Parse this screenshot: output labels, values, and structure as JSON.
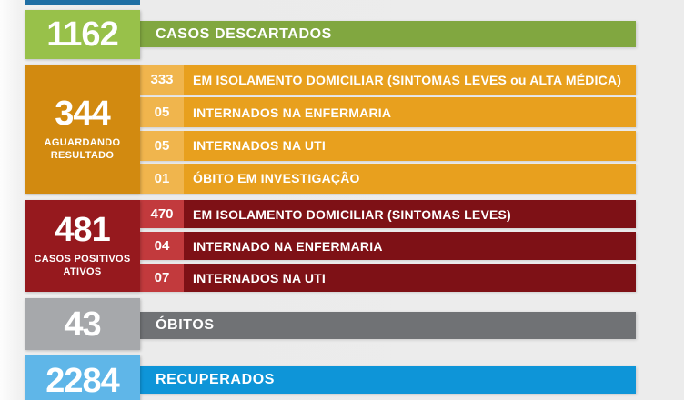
{
  "colors": {
    "top_fragment": "#1f6fa4",
    "green_block": "#98c14a",
    "green_bar": "#81a740",
    "orange_block": "#d28a10",
    "orange_value_box": "#f0b54d",
    "orange_row": "#e8a01e",
    "red_block": "#96191e",
    "red_value_box": "#c23a3d",
    "red_row": "#7e1116",
    "gray_block": "#a6a8ab",
    "gray_bar": "#707275",
    "blue_block": "#5fb6e8",
    "blue_bar": "#0e95d8",
    "text": "#ffffff"
  },
  "stats": {
    "descartados": {
      "value": "1162",
      "label": "CASOS DESCARTADOS"
    },
    "aguardando": {
      "value": "344",
      "sublabel": "AGUARDANDO RESULTADO",
      "rows": [
        {
          "value": "333",
          "label": "EM ISOLAMENTO DOMICILIAR (SINTOMAS LEVES ou ALTA MÉDICA)"
        },
        {
          "value": "05",
          "label": "INTERNADOS NA ENFERMARIA"
        },
        {
          "value": "05",
          "label": "INTERNADOS NA UTI"
        },
        {
          "value": "01",
          "label": "ÓBITO EM INVESTIGAÇÃO"
        }
      ]
    },
    "positivos": {
      "value": "481",
      "sublabel": "CASOS POSITIVOS ATIVOS",
      "rows": [
        {
          "value": "470",
          "label": "EM ISOLAMENTO DOMICILIAR (SINTOMAS LEVES)"
        },
        {
          "value": "04",
          "label": "INTERNADO NA ENFERMARIA"
        },
        {
          "value": "07",
          "label": "INTERNADOS NA UTI"
        }
      ]
    },
    "obitos": {
      "value": "43",
      "label": "ÓBITOS"
    },
    "recuperados": {
      "value": "2284",
      "label": "RECUPERADOS"
    }
  },
  "chart_data": {
    "type": "table",
    "title": "COVID case status board",
    "rows": [
      {
        "value": 1162,
        "label": "CASOS DESCARTADOS"
      },
      {
        "value": 344,
        "label": "AGUARDANDO RESULTADO",
        "breakdown": [
          {
            "value": 333,
            "label": "EM ISOLAMENTO DOMICILIAR (SINTOMAS LEVES ou ALTA MÉDICA)"
          },
          {
            "value": 5,
            "label": "INTERNADOS NA ENFERMARIA"
          },
          {
            "value": 5,
            "label": "INTERNADOS NA UTI"
          },
          {
            "value": 1,
            "label": "ÓBITO EM INVESTIGAÇÃO"
          }
        ]
      },
      {
        "value": 481,
        "label": "CASOS POSITIVOS ATIVOS",
        "breakdown": [
          {
            "value": 470,
            "label": "EM ISOLAMENTO DOMICILIAR (SINTOMAS LEVES)"
          },
          {
            "value": 4,
            "label": "INTERNADO NA ENFERMARIA"
          },
          {
            "value": 7,
            "label": "INTERNADOS NA UTI"
          }
        ]
      },
      {
        "value": 43,
        "label": "ÓBITOS"
      },
      {
        "value": 2284,
        "label": "RECUPERADOS"
      }
    ]
  }
}
